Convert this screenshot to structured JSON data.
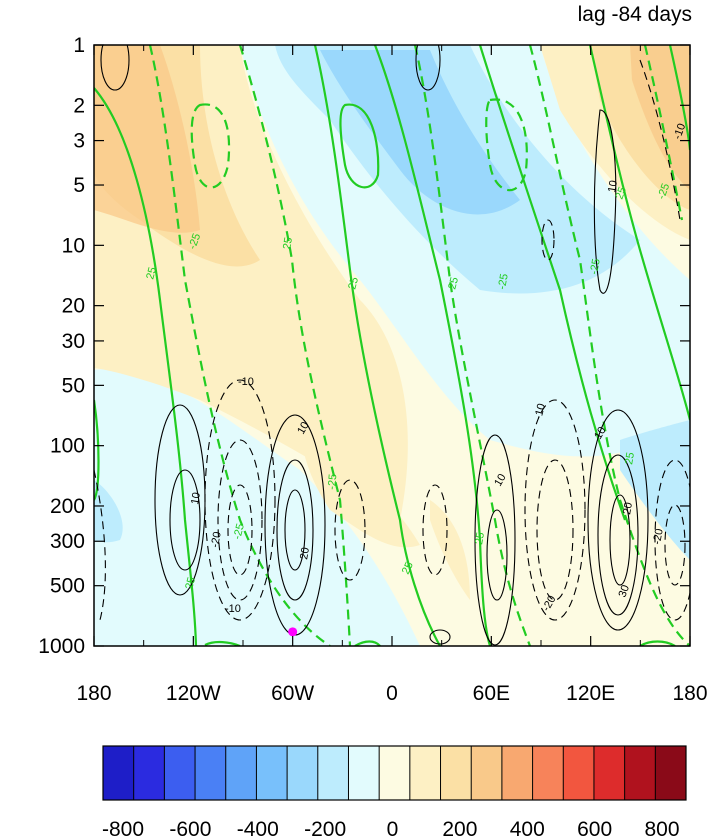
{
  "chart_data": {
    "type": "heatmap",
    "title": "lag -84 days",
    "xlabel": "",
    "ylabel": "",
    "x_tick_labels": [
      "180",
      "120W",
      "60W",
      "0",
      "60E",
      "120E",
      "180"
    ],
    "x_tick_values": [
      -180,
      -120,
      -60,
      0,
      60,
      120,
      180
    ],
    "xlim": [
      -180,
      180
    ],
    "y_scale": "log",
    "y_reversed": true,
    "ylim": [
      1000,
      1
    ],
    "y_tick_labels": [
      "1",
      "2",
      "3",
      "5",
      "10",
      "20",
      "30",
      "50",
      "100",
      "200",
      "300",
      "500",
      "1000"
    ],
    "y_tick_values": [
      1,
      2,
      3,
      5,
      10,
      20,
      30,
      50,
      100,
      200,
      300,
      500,
      1000
    ],
    "colorbar": {
      "tick_labels": [
        "-800",
        "-600",
        "-400",
        "-200",
        "0",
        "200",
        "400",
        "600",
        "800"
      ],
      "tick_values": [
        -800,
        -600,
        -400,
        -200,
        0,
        200,
        400,
        600,
        800
      ],
      "levels": [
        -800,
        -700,
        -600,
        -500,
        -400,
        -300,
        -200,
        -100,
        0,
        100,
        200,
        300,
        400,
        500,
        600,
        700,
        800
      ],
      "colors": [
        "#1e1ec8",
        "#2b2be0",
        "#3c5ef0",
        "#4a80f5",
        "#5fa3f8",
        "#78c0fb",
        "#9ad8fc",
        "#bdecfd",
        "#e2fbfd",
        "#fdfbe2",
        "#fdf0c4",
        "#fbe0a5",
        "#f9c98a",
        "#f8a870",
        "#f7835a",
        "#f2563f",
        "#dd2c2c",
        "#b0121e",
        "#8a0a18"
      ]
    },
    "shaded_field_note_values": {
      "positive_color": "#fbdcae",
      "negative_color": "#a8e4f5"
    },
    "contour_lines_black": {
      "labels": [
        "10",
        "-10",
        "20",
        "-20",
        "30"
      ]
    },
    "contour_lines_green": {
      "labels": [
        "25",
        "-25"
      ]
    },
    "marker": {
      "lon": -60,
      "p": 850,
      "color": "#ff00ff"
    }
  }
}
